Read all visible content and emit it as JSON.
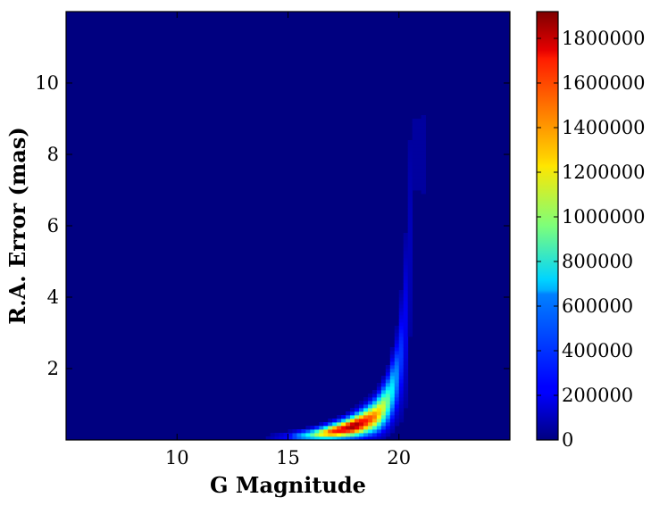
{
  "chart_data": {
    "type": "heatmap",
    "title": "",
    "xlabel": "G Magnitude",
    "ylabel": "R.A. Error (mas)",
    "xlim": [
      5.0,
      25.0
    ],
    "ylim": [
      0.0,
      12.0
    ],
    "x_ticks": [
      {
        "value": 10,
        "label": "10"
      },
      {
        "value": 15,
        "label": "15"
      },
      {
        "value": 20,
        "label": "20"
      }
    ],
    "y_ticks": [
      {
        "value": 2,
        "label": "2"
      },
      {
        "value": 4,
        "label": "4"
      },
      {
        "value": 6,
        "label": "6"
      },
      {
        "value": 8,
        "label": "8"
      },
      {
        "value": 10,
        "label": "10"
      }
    ],
    "colorbar": {
      "colormap": "jet",
      "range": [
        0,
        1920000
      ],
      "ticks": [
        {
          "value": 0,
          "label": "0"
        },
        {
          "value": 200000,
          "label": "200000"
        },
        {
          "value": 400000,
          "label": "400000"
        },
        {
          "value": 600000,
          "label": "600000"
        },
        {
          "value": 800000,
          "label": "800000"
        },
        {
          "value": 1000000,
          "label": "1000000"
        },
        {
          "value": 1200000,
          "label": "1200000"
        },
        {
          "value": 1400000,
          "label": "1400000"
        },
        {
          "value": 1600000,
          "label": "1600000"
        },
        {
          "value": 1800000,
          "label": "1800000"
        }
      ]
    },
    "density_ridge": [
      {
        "g": 13.0,
        "err": 0.04,
        "peak": 20000
      },
      {
        "g": 14.0,
        "err": 0.06,
        "peak": 60000
      },
      {
        "g": 15.0,
        "err": 0.09,
        "peak": 250000
      },
      {
        "g": 16.0,
        "err": 0.14,
        "peak": 800000
      },
      {
        "g": 17.0,
        "err": 0.24,
        "peak": 1600000
      },
      {
        "g": 18.0,
        "err": 0.4,
        "peak": 1900000
      },
      {
        "g": 19.0,
        "err": 0.7,
        "peak": 1400000
      },
      {
        "g": 19.5,
        "err": 1.1,
        "peak": 900000
      },
      {
        "g": 20.0,
        "err": 2.0,
        "peak": 400000
      },
      {
        "g": 20.4,
        "err": 4.0,
        "peak": 150000
      },
      {
        "g": 20.6,
        "err": 8.0,
        "peak": 60000
      }
    ],
    "background_level": 0,
    "grid": false
  }
}
